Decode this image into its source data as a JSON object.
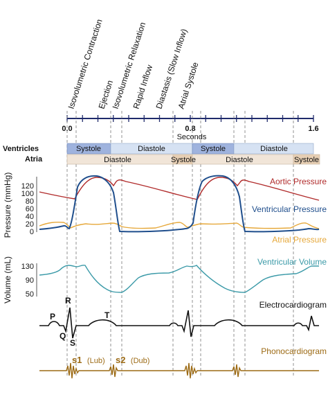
{
  "phases": [
    "Isovolumetric Contraction",
    "Ejection",
    "Isovolumetric Relaxation",
    "Rapid Inflow",
    "Diastasis (Slow Inflow)",
    "Atrial Systole"
  ],
  "time_axis": {
    "ticks": [
      "0.0",
      "0.8",
      "1.6"
    ],
    "label": "Seconds"
  },
  "ventricles": {
    "label": "Ventricles",
    "bands": [
      "Systole",
      "Diastole",
      "Systole",
      "Diastole"
    ]
  },
  "atria": {
    "label": "Atria",
    "bands": [
      "Diastole",
      "Systole",
      "Diastole",
      "Systole"
    ]
  },
  "pressure_axis": {
    "title": "Pressure (mmHg)",
    "ticks": [
      "120",
      "100",
      "80",
      "60",
      "40",
      "20",
      "0"
    ]
  },
  "volume_axis": {
    "title": "Volume (mL)",
    "ticks": [
      "130",
      "90",
      "50"
    ]
  },
  "curves": {
    "aortic": {
      "label": "Aortic Pressure",
      "color": "#b02a2a"
    },
    "ventricular": {
      "label": "Ventricular Pressure",
      "color": "#1f4e8c"
    },
    "atrial": {
      "label": "Atrial Pressure",
      "color": "#e6a83a"
    },
    "volume": {
      "label": "Ventricular Volume",
      "color": "#3b9aa8"
    },
    "ecg": {
      "label": "Electrocardiogram",
      "color": "#111111"
    },
    "phono": {
      "label": "Phonocardiogram",
      "color": "#9c6a14"
    }
  },
  "ecg_letters": {
    "p": "P",
    "q": "Q",
    "r": "R",
    "s": "S",
    "t": "T"
  },
  "heart_sounds": {
    "s1": "s1",
    "s1_note": "(Lub)",
    "s2": "s2",
    "s2_note": "(Dub)"
  }
}
